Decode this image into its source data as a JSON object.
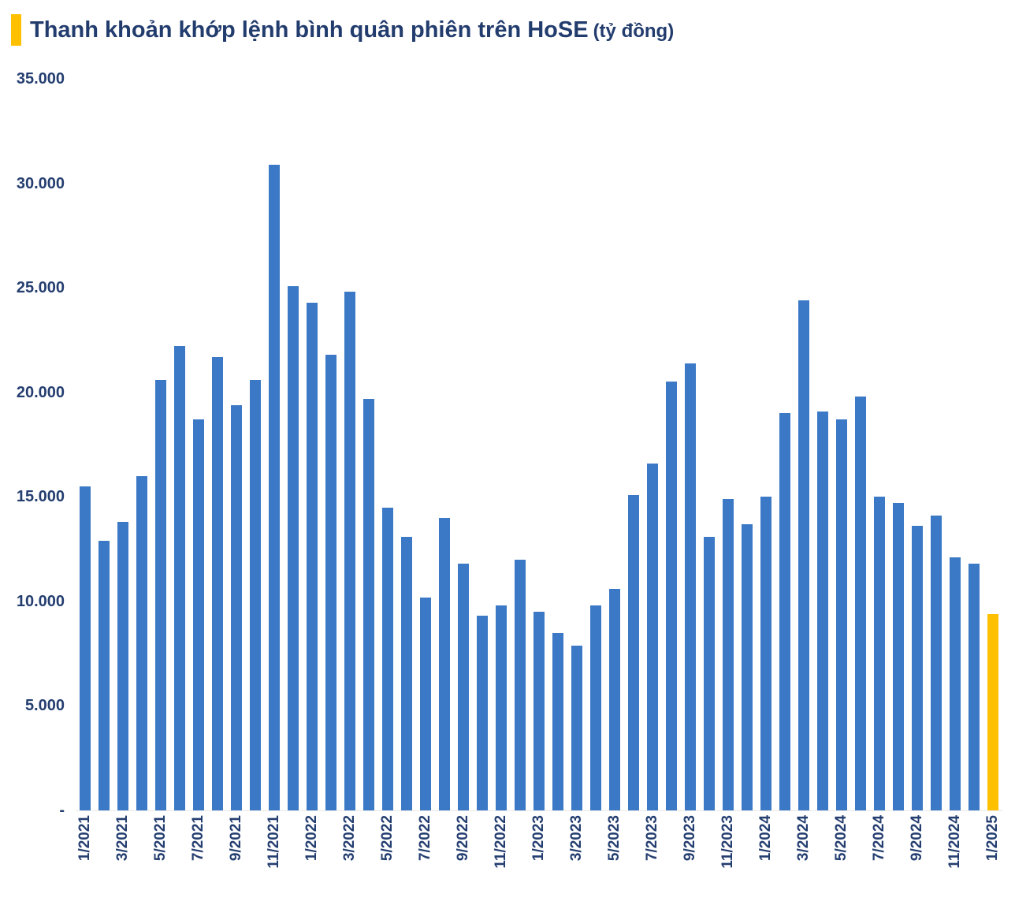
{
  "header": {
    "title_main": "Thanh khoản khớp lệnh bình quân phiên trên HoSE",
    "title_unit": "(tỷ đồng)",
    "accent_color": "#FFC000",
    "title_color": "#223C6E"
  },
  "chart_data": {
    "type": "bar",
    "title": "Thanh khoản khớp lệnh bình quân phiên trên HoSE (tỷ đồng)",
    "unit": "tỷ đồng",
    "categories": [
      "1/2021",
      "2/2021",
      "3/2021",
      "4/2021",
      "5/2021",
      "6/2021",
      "7/2021",
      "8/2021",
      "9/2021",
      "10/2021",
      "11/2021",
      "12/2021",
      "1/2022",
      "2/2022",
      "3/2022",
      "4/2022",
      "5/2022",
      "6/2022",
      "7/2022",
      "8/2022",
      "9/2022",
      "10/2022",
      "11/2022",
      "12/2022",
      "1/2023",
      "2/2023",
      "3/2023",
      "4/2023",
      "5/2023",
      "6/2023",
      "7/2023",
      "8/2023",
      "9/2023",
      "10/2023",
      "11/2023",
      "12/2023",
      "1/2024",
      "2/2024",
      "3/2024",
      "4/2024",
      "5/2024",
      "6/2024",
      "7/2024",
      "8/2024",
      "9/2024",
      "10/2024",
      "11/2024",
      "12/2024",
      "1/2025"
    ],
    "values": [
      15500,
      12900,
      13800,
      16000,
      20600,
      22200,
      18700,
      21700,
      19400,
      20600,
      30900,
      25100,
      24300,
      21800,
      24800,
      19700,
      14500,
      13100,
      10200,
      14000,
      11800,
      9300,
      9800,
      12000,
      9500,
      8500,
      7900,
      9800,
      10600,
      15100,
      16600,
      20500,
      21400,
      13100,
      14900,
      13700,
      15000,
      19000,
      24400,
      19100,
      18700,
      19800,
      15000,
      14700,
      13600,
      14100,
      12100,
      11800,
      9400
    ],
    "highlight_index": 48,
    "highlight_category": "1/2025",
    "bar_color": "#3B79C6",
    "highlight_color": "#FFC000",
    "ylim": [
      0,
      35000
    ],
    "ytick_interval": 5000,
    "ytick_labels_top_to_bottom": [
      "35.000",
      "30.000",
      "25.000",
      "20.000",
      "15.000",
      "10.000",
      "5.000",
      "-"
    ],
    "x_label_every": 2,
    "grid": "off",
    "legend": "none",
    "axis_label_color": "#243E70"
  }
}
